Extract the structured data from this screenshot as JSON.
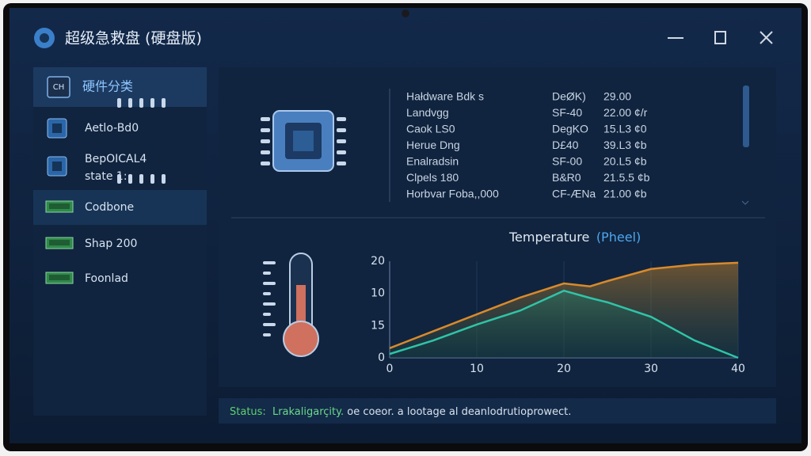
{
  "window": {
    "title": "超级急救盘 (硬盘版)"
  },
  "sidebar": {
    "header_icon": "CH",
    "header": "硬件分类",
    "items": [
      {
        "label": "Aetlo-Bd0"
      },
      {
        "label": "BepOICAL4",
        "sublabel": "state 1:"
      },
      {
        "label": "Codbone"
      },
      {
        "label": "Shap 200"
      },
      {
        "label": "Foonlad"
      }
    ]
  },
  "table": {
    "rows": [
      [
        "Hałdware Bdk s",
        "DeØK)",
        "29.00"
      ],
      [
        "Landvgg",
        "SF-40",
        "22.00 ¢/r"
      ],
      [
        "Caok LS0",
        "DegKO",
        "15.L3 ¢0"
      ],
      [
        "Herue Dng",
        "D£40",
        "39.L3 ¢b"
      ],
      [
        "Enalradsin",
        "SF-00",
        "20.L5 ¢b"
      ],
      [
        "Clpels 180",
        "B&R0",
        "21.5.5 ¢b"
      ],
      [
        "Horbvar Foba,,000",
        "CF-ÆNa",
        "21.00 ¢b"
      ]
    ]
  },
  "chart_data": {
    "type": "line",
    "title": "Temperature",
    "title_unit": "(Pheel)",
    "x": [
      0,
      5,
      10,
      15,
      20,
      23,
      25,
      30,
      35,
      40
    ],
    "xlim": [
      0,
      40
    ],
    "xticks": [
      0,
      10,
      20,
      30,
      40
    ],
    "ylim": [
      0,
      20
    ],
    "y_axis_labels": [
      "20",
      "10",
      "15",
      "0"
    ],
    "grid": true,
    "series": [
      {
        "color": "#d98a2b",
        "values": [
          2,
          5.5,
          9,
          12.5,
          15.4,
          14.8,
          15.9,
          18.4,
          19.3,
          19.7
        ]
      },
      {
        "color": "#2fc4a8",
        "values": [
          0.8,
          3.6,
          6.9,
          9.8,
          13.9,
          12.4,
          11.5,
          8.5,
          3.6,
          0
        ]
      }
    ]
  },
  "status": {
    "label": "Status:",
    "state": "Lrakaligarçity.",
    "message": " oe coeor. a lootage al deanlodrutioprowect."
  }
}
